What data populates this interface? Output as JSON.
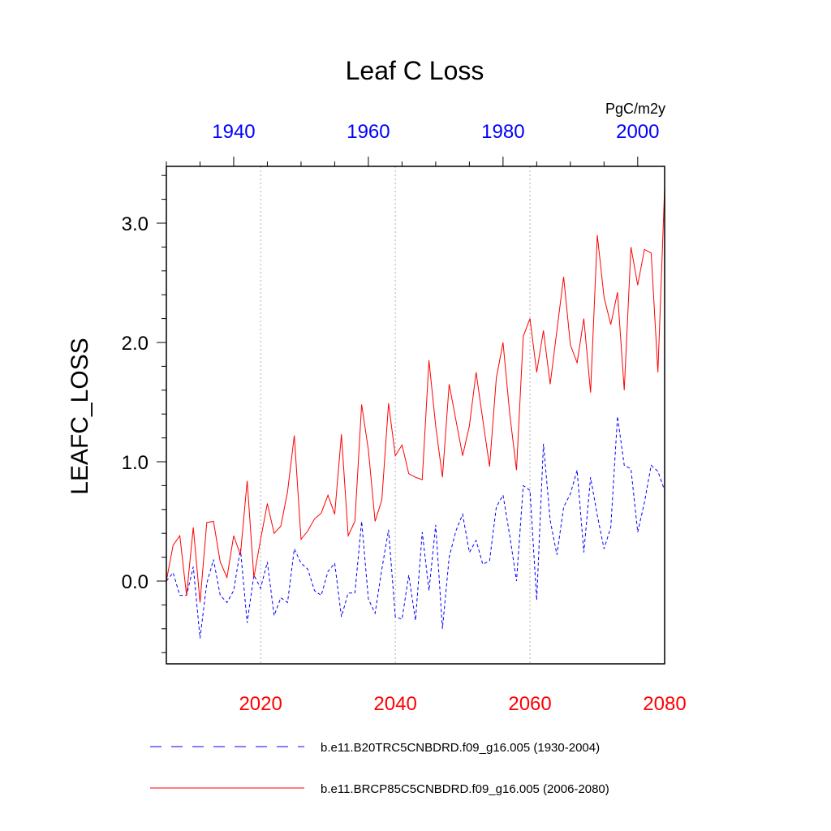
{
  "chart_data": {
    "type": "line",
    "title": "Leaf C Loss",
    "ylabel": "LEAFC_LOSS",
    "units": "PgC/m2y",
    "ylim": [
      -0.7,
      3.5
    ],
    "y_ticks": [
      0.0,
      1.0,
      2.0,
      3.0
    ],
    "y_tick_labels": [
      "0.0",
      "1.0",
      "2.0",
      "3.0"
    ],
    "bottom_axis": {
      "range": [
        2006,
        2080
      ],
      "ticks": [
        2020,
        2040,
        2060,
        2080
      ],
      "tick_labels": [
        "2020",
        "2040",
        "2060",
        "2080"
      ],
      "color": "#ff0000"
    },
    "top_axis": {
      "range": [
        1930,
        2004
      ],
      "ticks": [
        1940,
        1960,
        1980,
        2000
      ],
      "tick_labels": [
        "1940",
        "1960",
        "1980",
        "2000"
      ],
      "color": "#0000ff"
    },
    "vertical_gridlines_at": [
      2020,
      2040,
      2060
    ],
    "legend_placement": "bottom",
    "series": [
      {
        "name": "b.e11.B20TRC5CNBDRD.f09_g16.005 (1930-2004)",
        "axis": "top",
        "color": "#0000ff",
        "style": "dashed",
        "x": [
          1930,
          1931,
          1932,
          1933,
          1934,
          1935,
          1936,
          1937,
          1938,
          1939,
          1940,
          1941,
          1942,
          1943,
          1944,
          1945,
          1946,
          1947,
          1948,
          1949,
          1950,
          1951,
          1952,
          1953,
          1954,
          1955,
          1956,
          1957,
          1958,
          1959,
          1960,
          1961,
          1962,
          1963,
          1964,
          1965,
          1966,
          1967,
          1968,
          1969,
          1970,
          1971,
          1972,
          1973,
          1974,
          1975,
          1976,
          1977,
          1978,
          1979,
          1980,
          1981,
          1982,
          1983,
          1984,
          1985,
          1986,
          1987,
          1988,
          1989,
          1990,
          1991,
          1992,
          1993,
          1994,
          1995,
          1996,
          1997,
          1998,
          1999,
          2000,
          2001,
          2002,
          2003,
          2004
        ],
        "values": [
          0.0,
          0.07,
          -0.12,
          -0.12,
          0.12,
          -0.48,
          -0.02,
          0.18,
          -0.12,
          -0.18,
          -0.08,
          0.27,
          -0.35,
          0.05,
          -0.06,
          0.16,
          -0.29,
          -0.14,
          -0.18,
          0.27,
          0.15,
          0.1,
          -0.08,
          -0.12,
          0.08,
          0.15,
          -0.3,
          -0.1,
          -0.1,
          0.5,
          -0.15,
          -0.27,
          0.1,
          0.43,
          -0.3,
          -0.32,
          0.05,
          -0.33,
          0.41,
          -0.08,
          0.47,
          -0.4,
          0.2,
          0.42,
          0.56,
          0.24,
          0.34,
          0.14,
          0.17,
          0.62,
          0.72,
          0.38,
          0.0,
          0.8,
          0.76,
          -0.16,
          1.15,
          0.51,
          0.22,
          0.62,
          0.73,
          0.93,
          0.24,
          0.87,
          0.55,
          0.27,
          0.45,
          1.38,
          0.97,
          0.94,
          0.41,
          0.66,
          0.97,
          0.92,
          0.76
        ]
      },
      {
        "name": "b.e11.BRCP85C5CNBDRD.f09_g16.005 (2006-2080)",
        "axis": "bottom",
        "color": "#ff0000",
        "style": "solid",
        "x": [
          2006,
          2007,
          2008,
          2009,
          2010,
          2011,
          2012,
          2013,
          2014,
          2015,
          2016,
          2017,
          2018,
          2019,
          2020,
          2021,
          2022,
          2023,
          2024,
          2025,
          2026,
          2027,
          2028,
          2029,
          2030,
          2031,
          2032,
          2033,
          2034,
          2035,
          2036,
          2037,
          2038,
          2039,
          2040,
          2041,
          2042,
          2043,
          2044,
          2045,
          2046,
          2047,
          2048,
          2049,
          2050,
          2051,
          2052,
          2053,
          2054,
          2055,
          2056,
          2057,
          2058,
          2059,
          2060,
          2061,
          2062,
          2063,
          2064,
          2065,
          2066,
          2067,
          2068,
          2069,
          2070,
          2071,
          2072,
          2073,
          2074,
          2075,
          2076,
          2077,
          2078,
          2079,
          2080
        ],
        "values": [
          0.0,
          0.3,
          0.38,
          -0.12,
          0.45,
          -0.18,
          0.49,
          0.5,
          0.16,
          0.03,
          0.38,
          0.22,
          0.84,
          0.03,
          0.35,
          0.65,
          0.4,
          0.46,
          0.75,
          1.22,
          0.35,
          0.42,
          0.52,
          0.57,
          0.72,
          0.56,
          1.23,
          0.38,
          0.5,
          1.48,
          1.1,
          0.5,
          0.68,
          1.49,
          1.05,
          1.14,
          0.9,
          0.87,
          0.85,
          1.85,
          1.3,
          0.87,
          1.65,
          1.35,
          1.05,
          1.3,
          1.75,
          1.35,
          0.96,
          1.7,
          2.0,
          1.4,
          0.93,
          2.05,
          2.2,
          1.75,
          2.1,
          1.65,
          2.1,
          2.55,
          1.98,
          1.83,
          2.2,
          1.58,
          2.9,
          2.38,
          2.15,
          2.42,
          1.6,
          2.8,
          2.48,
          2.78,
          2.75,
          1.75,
          3.3
        ]
      }
    ]
  }
}
